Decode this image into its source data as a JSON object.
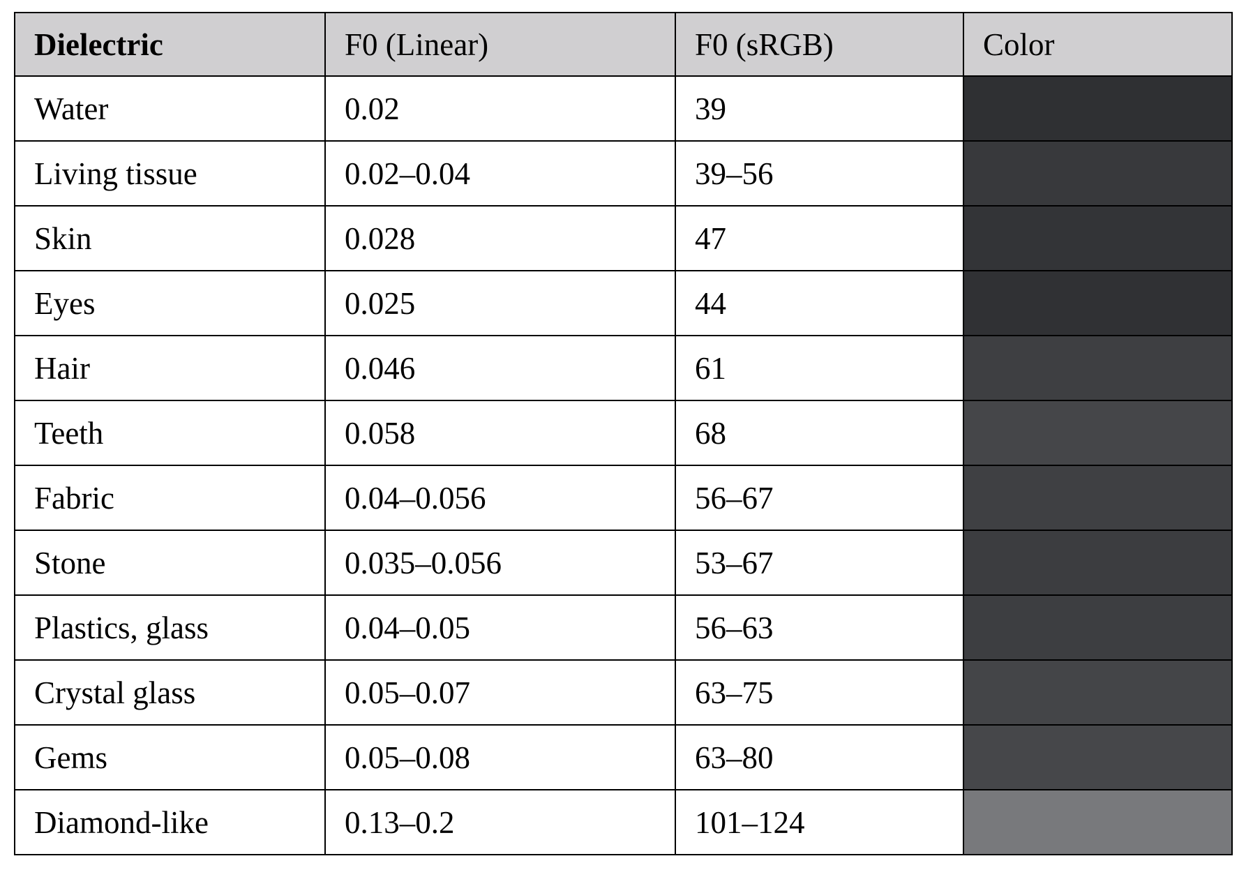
{
  "table": {
    "header": [
      "Dielectric",
      "F0 (Linear)",
      "F0 (sRGB)",
      "Color"
    ],
    "rows": [
      [
        "Water",
        "0.02",
        "39"
      ],
      [
        "Living tissue",
        "0.02–0.04",
        "39–56"
      ],
      [
        "Skin",
        "0.028",
        "47"
      ],
      [
        "Eyes",
        "0.025",
        "44"
      ],
      [
        "Hair",
        "0.046",
        "61"
      ],
      [
        "Teeth",
        "0.058",
        "68"
      ],
      [
        "Fabric",
        "0.04–0.056",
        "56–67"
      ],
      [
        "Stone",
        "0.035–0.056",
        "53–67"
      ],
      [
        "Plastics, glass",
        "0.04–0.05",
        "56–63"
      ],
      [
        "Crystal glass",
        "0.05–0.07",
        "63–75"
      ],
      [
        "Gems",
        "0.05–0.08",
        "63–80"
      ],
      [
        "Diamond-like",
        "0.13–0.2",
        "101–124"
      ]
    ],
    "row_colors": [
      "#2f3033",
      "#38393c",
      "#333437",
      "#303134",
      "#3e3f42",
      "#454649",
      "#3f4043",
      "#3c3d40",
      "#3d3e41",
      "#444548",
      "#46474a",
      "#78797c"
    ]
  }
}
